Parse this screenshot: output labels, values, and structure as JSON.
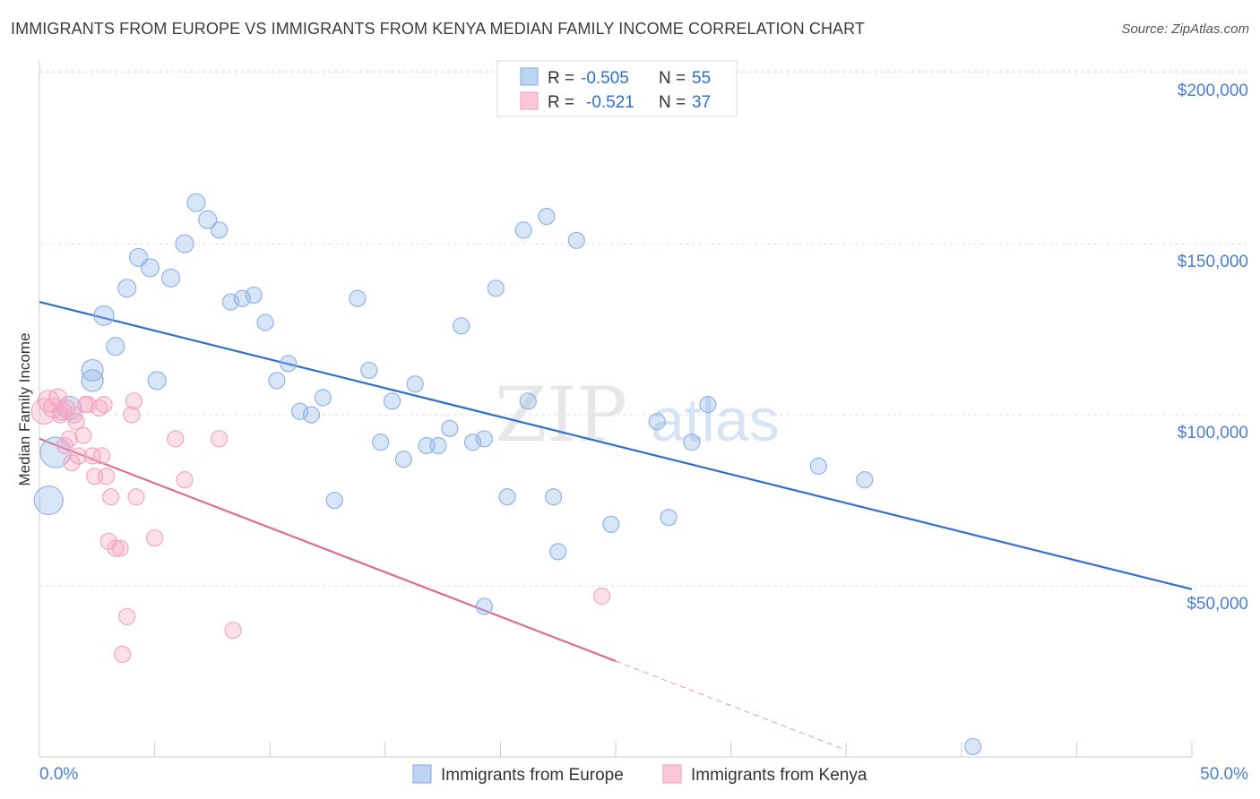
{
  "header": {
    "title": "IMMIGRANTS FROM EUROPE VS IMMIGRANTS FROM KENYA MEDIAN FAMILY INCOME CORRELATION CHART",
    "source": "Source: ZipAtlas.com"
  },
  "watermark": {
    "zip": "ZIP",
    "atlas": "atlas"
  },
  "chart_data": {
    "type": "scatter",
    "ylabel": "Median Family Income",
    "xlim": [
      0,
      50
    ],
    "ylim": [
      0,
      210000
    ],
    "x_tick_labels": [
      "0.0%",
      "50.0%"
    ],
    "y_ticks": [
      {
        "value": 50000,
        "label": "$50,000"
      },
      {
        "value": 100000,
        "label": "$100,000"
      },
      {
        "value": 150000,
        "label": "$150,000"
      },
      {
        "value": 200000,
        "label": "$200,000"
      }
    ],
    "grid": true,
    "legend_placement": "top-center",
    "stats": [
      {
        "r_label": "R =",
        "r_value": "-0.505",
        "n_label": "N =",
        "n_value": "55"
      },
      {
        "r_label": "R =",
        "r_value": "-0.521",
        "n_label": "N =",
        "n_value": "37"
      }
    ],
    "series": [
      {
        "name": "Immigrants from Europe",
        "color": "#8fb4e8",
        "line_color": "#2f6fd0",
        "trend": {
          "x0": 0,
          "y0": 133000,
          "x1": 50,
          "y1": 49000
        },
        "points": [
          [
            0.4,
            75000,
            16
          ],
          [
            0.7,
            89000,
            17
          ],
          [
            1.3,
            102000,
            13
          ],
          [
            2.3,
            110000,
            12
          ],
          [
            2.3,
            113000,
            12
          ],
          [
            2.8,
            129000,
            11
          ],
          [
            3.3,
            120000,
            10
          ],
          [
            3.8,
            137000,
            10
          ],
          [
            4.3,
            146000,
            10
          ],
          [
            4.8,
            143000,
            10
          ],
          [
            5.1,
            110000,
            10
          ],
          [
            5.7,
            140000,
            10
          ],
          [
            6.3,
            150000,
            10
          ],
          [
            6.8,
            162000,
            10
          ],
          [
            7.3,
            157000,
            10
          ],
          [
            7.8,
            154000,
            9
          ],
          [
            8.3,
            133000,
            9
          ],
          [
            8.8,
            134000,
            9
          ],
          [
            9.3,
            135000,
            9
          ],
          [
            9.8,
            127000,
            9
          ],
          [
            10.3,
            110000,
            9
          ],
          [
            10.8,
            115000,
            9
          ],
          [
            11.3,
            101000,
            9
          ],
          [
            11.8,
            100000,
            9
          ],
          [
            12.3,
            105000,
            9
          ],
          [
            12.8,
            75000,
            9
          ],
          [
            13.8,
            134000,
            9
          ],
          [
            14.3,
            113000,
            9
          ],
          [
            14.8,
            92000,
            9
          ],
          [
            15.3,
            104000,
            9
          ],
          [
            15.8,
            87000,
            9
          ],
          [
            16.3,
            109000,
            9
          ],
          [
            16.8,
            91000,
            9
          ],
          [
            17.3,
            91000,
            9
          ],
          [
            17.8,
            96000,
            9
          ],
          [
            18.3,
            126000,
            9
          ],
          [
            18.8,
            92000,
            9
          ],
          [
            19.3,
            93000,
            9
          ],
          [
            19.3,
            44000,
            9
          ],
          [
            19.8,
            137000,
            9
          ],
          [
            20.3,
            76000,
            9
          ],
          [
            21.0,
            154000,
            9
          ],
          [
            21.2,
            104000,
            9
          ],
          [
            22.0,
            158000,
            9
          ],
          [
            22.3,
            76000,
            9
          ],
          [
            22.5,
            60000,
            9
          ],
          [
            23.3,
            151000,
            9
          ],
          [
            24.8,
            68000,
            9
          ],
          [
            26.8,
            98000,
            9
          ],
          [
            27.3,
            70000,
            9
          ],
          [
            28.3,
            92000,
            9
          ],
          [
            29.0,
            103000,
            9
          ],
          [
            33.8,
            85000,
            9
          ],
          [
            35.8,
            81000,
            9
          ],
          [
            40.5,
            3000,
            9
          ]
        ]
      },
      {
        "name": "Immigrants from Kenya",
        "color": "#f4a6c0",
        "line_color": "#e06a97",
        "trend": {
          "x0": 0,
          "y0": 93000,
          "x1": 25,
          "y1": 28000
        },
        "trend_dashed": {
          "x0": 25,
          "y0": 28000,
          "x1": 35,
          "y1": 2000
        },
        "points": [
          [
            0.2,
            101000,
            14
          ],
          [
            0.4,
            104000,
            12
          ],
          [
            0.6,
            102000,
            11
          ],
          [
            0.8,
            105000,
            10
          ],
          [
            1.0,
            101000,
            10
          ],
          [
            1.1,
            91000,
            9
          ],
          [
            1.3,
            93000,
            9
          ],
          [
            1.4,
            86000,
            9
          ],
          [
            1.5,
            100000,
            9
          ],
          [
            1.6,
            98000,
            9
          ],
          [
            1.7,
            88000,
            9
          ],
          [
            1.9,
            94000,
            9
          ],
          [
            2.0,
            103000,
            9
          ],
          [
            2.1,
            103000,
            9
          ],
          [
            2.3,
            88000,
            9
          ],
          [
            2.4,
            82000,
            9
          ],
          [
            2.6,
            102000,
            9
          ],
          [
            2.7,
            88000,
            9
          ],
          [
            2.8,
            103000,
            9
          ],
          [
            2.9,
            82000,
            9
          ],
          [
            3.0,
            63000,
            9
          ],
          [
            3.1,
            76000,
            9
          ],
          [
            3.3,
            61000,
            9
          ],
          [
            3.5,
            61000,
            9
          ],
          [
            3.6,
            30000,
            9
          ],
          [
            3.8,
            41000,
            9
          ],
          [
            4.0,
            100000,
            9
          ],
          [
            4.1,
            104000,
            9
          ],
          [
            4.2,
            76000,
            9
          ],
          [
            5.0,
            64000,
            9
          ],
          [
            5.9,
            93000,
            9
          ],
          [
            6.3,
            81000,
            9
          ],
          [
            7.8,
            93000,
            9
          ],
          [
            8.4,
            37000,
            9
          ],
          [
            24.4,
            47000,
            9
          ],
          [
            1.2,
            102000,
            9
          ],
          [
            0.9,
            100000,
            9
          ]
        ]
      }
    ]
  }
}
